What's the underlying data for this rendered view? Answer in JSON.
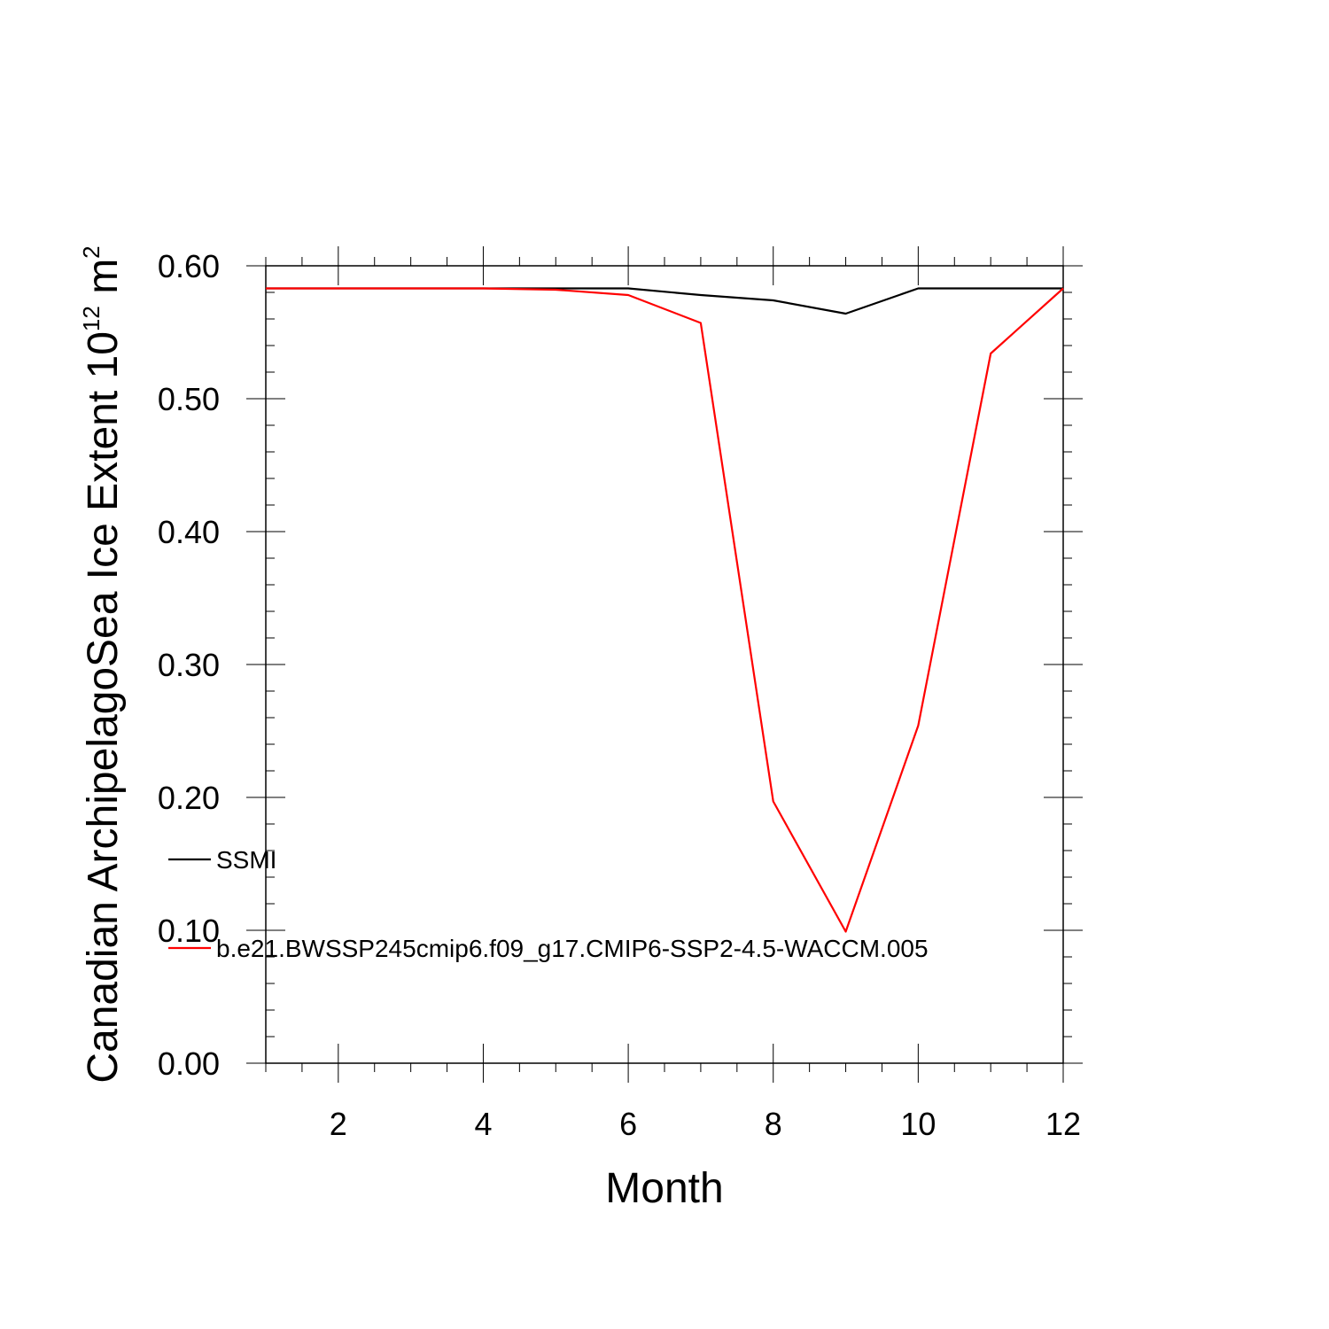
{
  "chart_data": {
    "type": "line",
    "title": "",
    "xlabel": "Month",
    "ylabel": {
      "prefix": "Canadian ArchipelagoSea Ice Extent 10",
      "exponent": "12",
      "unit": " m",
      "unit_exponent": "2"
    },
    "xlim": [
      1,
      12
    ],
    "ylim": [
      0.0,
      0.6
    ],
    "x_ticks": [
      2,
      4,
      6,
      8,
      10,
      12
    ],
    "y_ticks": [
      "0.00",
      "0.10",
      "0.20",
      "0.30",
      "0.40",
      "0.50",
      "0.60"
    ],
    "grid": false,
    "legend_placement": "lower-left inside",
    "x": [
      1,
      2,
      3,
      4,
      5,
      6,
      7,
      8,
      9,
      10,
      11,
      12
    ],
    "series": [
      {
        "name": "SSMI",
        "color": "#000000",
        "values": [
          0.583,
          0.583,
          0.583,
          0.583,
          0.583,
          0.583,
          0.578,
          0.574,
          0.564,
          0.583,
          0.583,
          0.583
        ]
      },
      {
        "name": "b.e21.BWSSP245cmip6.f09_g17.CMIP6-SSP2-4.5-WACCM.005",
        "color": "#ff0000",
        "values": [
          0.583,
          0.583,
          0.583,
          0.583,
          0.582,
          0.578,
          0.557,
          0.197,
          0.099,
          0.254,
          0.534,
          0.583
        ]
      }
    ]
  }
}
